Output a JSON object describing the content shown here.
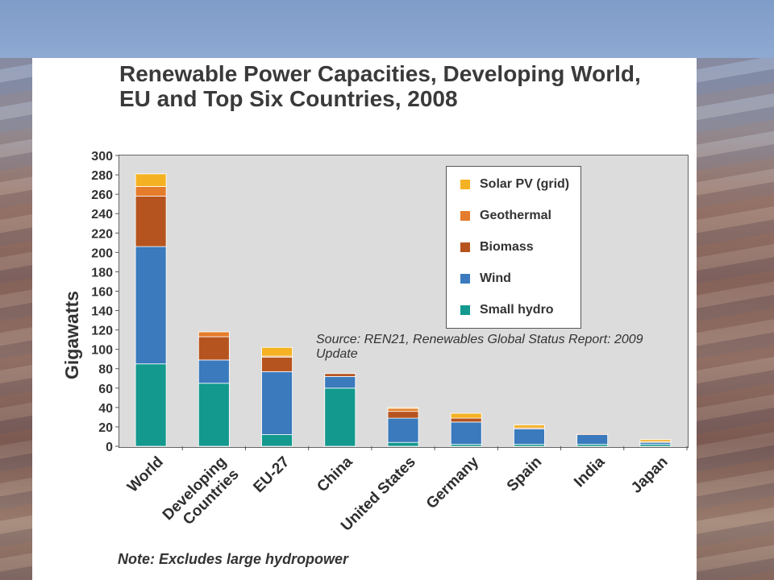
{
  "colors": {
    "small_hydro": "#13998e",
    "wind": "#3a7abd",
    "biomass": "#b6541f",
    "geothermal": "#e57c2b",
    "solar_pv": "#f4b223",
    "plot_bg": "#dcdcdc"
  },
  "chart_data": {
    "type": "bar",
    "stacked": true,
    "title": "Renewable Power Capacities, Developing World, EU and Top Six Countries, 2008",
    "title_lines": [
      "Renewable Power Capacities, Developing World,",
      "EU and Top Six Countries, 2008"
    ],
    "xlabel": "",
    "ylabel": "Gigawatts",
    "ylim": [
      0,
      300
    ],
    "yticks": [
      0,
      20,
      40,
      60,
      80,
      100,
      120,
      140,
      160,
      180,
      200,
      220,
      240,
      260,
      280,
      300
    ],
    "grid": false,
    "legend_position": "top-right",
    "categories": [
      "World",
      "Developing Countries",
      "EU-27",
      "China",
      "United States",
      "Germany",
      "Spain",
      "India",
      "Japan"
    ],
    "category_lines": [
      [
        "World"
      ],
      [
        "Developing",
        "Countries"
      ],
      [
        "EU-27"
      ],
      [
        "China"
      ],
      [
        "United States"
      ],
      [
        "Germany"
      ],
      [
        "Spain"
      ],
      [
        "India"
      ],
      [
        "Japan"
      ]
    ],
    "series": [
      {
        "name": "Small hydro",
        "color_key": "small_hydro",
        "values": [
          85,
          65,
          12,
          60,
          4,
          2,
          2,
          2,
          2
        ]
      },
      {
        "name": "Wind",
        "color_key": "wind",
        "values": [
          121,
          24,
          65,
          12,
          25,
          23,
          16,
          10,
          2
        ]
      },
      {
        "name": "Biomass",
        "color_key": "biomass",
        "values": [
          52,
          24,
          15,
          3,
          7,
          4,
          1,
          1,
          0
        ]
      },
      {
        "name": "Geothermal",
        "color_key": "geothermal",
        "values": [
          10,
          5,
          1,
          0,
          3,
          0,
          0,
          0,
          1
        ]
      },
      {
        "name": "Solar PV (grid)",
        "color_key": "solar_pv",
        "values": [
          13,
          0,
          9,
          0,
          1,
          5,
          3,
          0,
          2
        ]
      }
    ],
    "legend_order": [
      "Solar PV (grid)",
      "Geothermal",
      "Biomass",
      "Wind",
      "Small hydro"
    ],
    "annotations": {
      "source": "Source: REN21, Renewables Global Status Report: 2009 Update",
      "note": "Note: Excludes large hydropower"
    }
  }
}
